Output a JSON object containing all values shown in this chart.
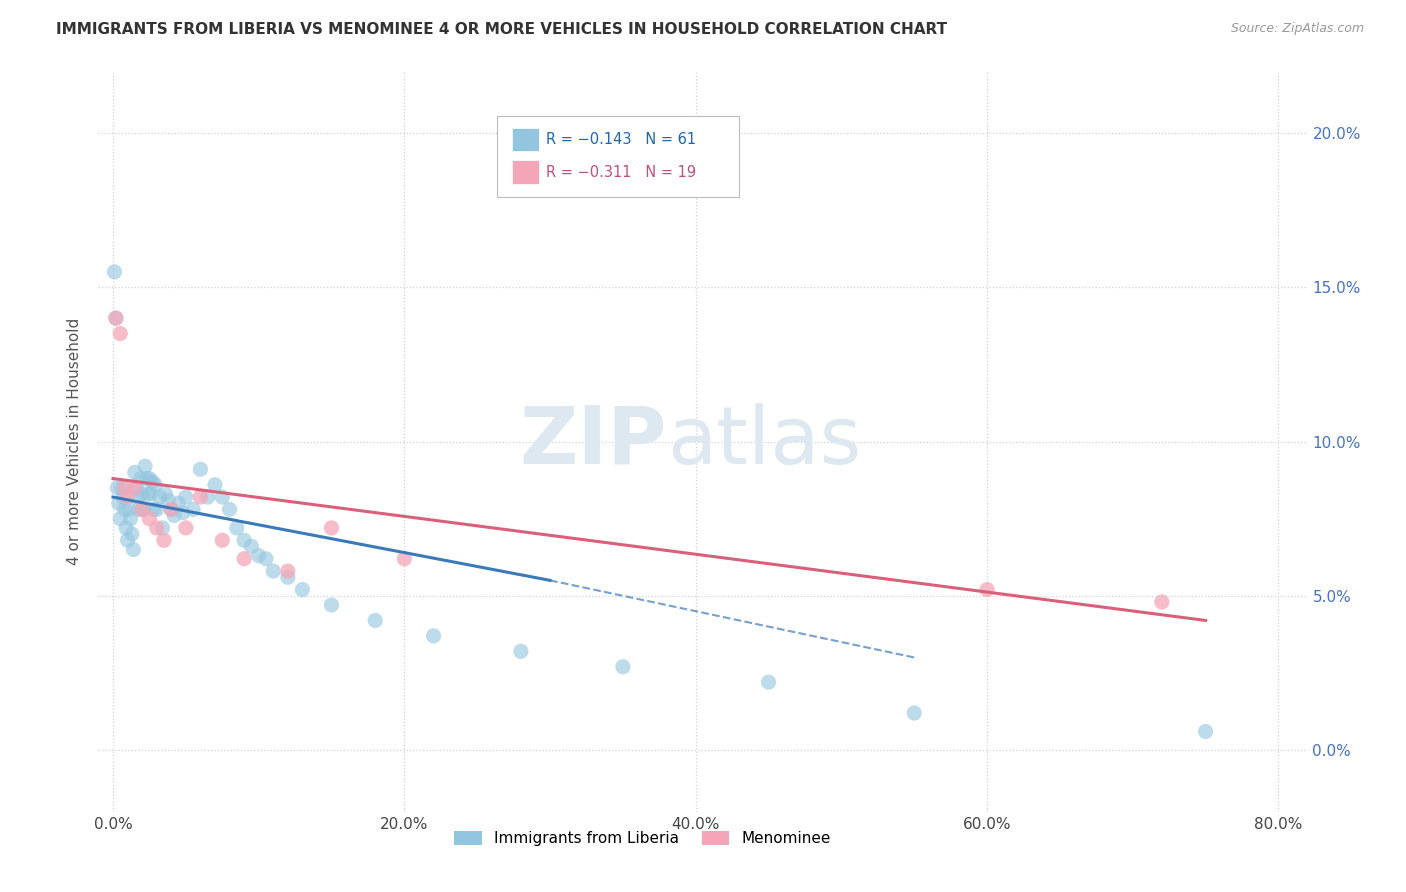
{
  "title": "IMMIGRANTS FROM LIBERIA VS MENOMINEE 4 OR MORE VEHICLES IN HOUSEHOLD CORRELATION CHART",
  "source": "Source: ZipAtlas.com",
  "ylabel": "4 or more Vehicles in Household",
  "legend_blue_label": "Immigrants from Liberia",
  "legend_pink_label": "Menominee",
  "legend_blue_r": "R = −0.143",
  "legend_blue_n": "N = 61",
  "legend_pink_r": "R = −0.311",
  "legend_pink_n": "N = 19",
  "watermark_zip": "ZIP",
  "watermark_atlas": "atlas",
  "blue_color": "#92c5de",
  "pink_color": "#f4a6b8",
  "blue_line_color": "#3a7ab8",
  "pink_line_color": "#d9607a",
  "blue_scatter_x": [
    0.1,
    0.2,
    0.3,
    0.4,
    0.5,
    0.6,
    0.7,
    0.8,
    0.9,
    1.0,
    1.1,
    1.2,
    1.3,
    1.4,
    1.5,
    1.6,
    1.7,
    1.8,
    1.9,
    2.0,
    2.1,
    2.2,
    2.3,
    2.4,
    2.5,
    2.6,
    2.7,
    2.8,
    2.9,
    3.0,
    3.2,
    3.4,
    3.6,
    3.8,
    4.0,
    4.2,
    4.5,
    4.8,
    5.0,
    5.5,
    6.0,
    6.5,
    7.0,
    7.5,
    8.0,
    8.5,
    9.0,
    9.5,
    10.0,
    10.5,
    11.0,
    12.0,
    13.0,
    15.0,
    18.0,
    22.0,
    28.0,
    35.0,
    45.0,
    55.0,
    75.0
  ],
  "blue_scatter_y": [
    15.5,
    14.0,
    8.5,
    8.0,
    7.5,
    8.5,
    8.2,
    7.8,
    7.2,
    6.8,
    7.8,
    7.5,
    7.0,
    6.5,
    9.0,
    8.5,
    8.2,
    7.8,
    8.8,
    8.3,
    7.8,
    9.2,
    8.8,
    8.3,
    8.8,
    8.3,
    8.7,
    7.8,
    8.6,
    7.8,
    8.2,
    7.2,
    8.3,
    8.1,
    7.8,
    7.6,
    8.0,
    7.7,
    8.2,
    7.8,
    9.1,
    8.2,
    8.6,
    8.2,
    7.8,
    7.2,
    6.8,
    6.6,
    6.3,
    6.2,
    5.8,
    5.6,
    5.2,
    4.7,
    4.2,
    3.7,
    3.2,
    2.7,
    2.2,
    1.2,
    0.6
  ],
  "pink_scatter_x": [
    0.2,
    0.5,
    0.8,
    1.0,
    1.5,
    2.0,
    2.5,
    3.0,
    3.5,
    4.0,
    5.0,
    6.0,
    7.5,
    9.0,
    12.0,
    15.0,
    20.0,
    60.0,
    72.0
  ],
  "pink_scatter_y": [
    14.0,
    13.5,
    8.5,
    8.2,
    8.5,
    7.8,
    7.5,
    7.2,
    6.8,
    7.8,
    7.2,
    8.2,
    6.8,
    6.2,
    5.8,
    7.2,
    6.2,
    5.2,
    4.8
  ],
  "blue_line_x0": 0.0,
  "blue_line_x1": 30.0,
  "blue_line_y0": 8.2,
  "blue_line_y1": 5.5,
  "blue_dash_x0": 30.0,
  "blue_dash_x1": 55.0,
  "blue_dash_y0": 5.5,
  "blue_dash_y1": 3.0,
  "pink_line_x0": 0.0,
  "pink_line_x1": 75.0,
  "pink_line_y0": 8.8,
  "pink_line_y1": 4.2,
  "xlim": [
    -1.0,
    82.0
  ],
  "ylim": [
    -2.0,
    22.0
  ],
  "x_ticks": [
    0.0,
    20.0,
    40.0,
    60.0,
    80.0
  ],
  "y_ticks": [
    0.0,
    5.0,
    10.0,
    15.0,
    20.0
  ]
}
